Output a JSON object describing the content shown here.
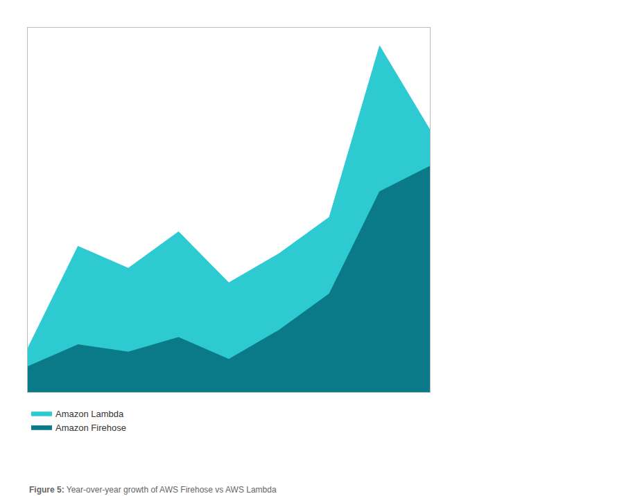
{
  "chart_data": {
    "type": "area",
    "x": [
      0,
      1,
      2,
      3,
      4,
      5,
      6,
      7,
      8
    ],
    "series": [
      {
        "name": "Amazon Lambda",
        "color": "#2ECAD2",
        "values": [
          0.12,
          0.4,
          0.34,
          0.44,
          0.3,
          0.38,
          0.48,
          0.95,
          0.72
        ]
      },
      {
        "name": "Amazon Firehose",
        "color": "#0B7A88",
        "values": [
          0.07,
          0.13,
          0.11,
          0.15,
          0.09,
          0.17,
          0.27,
          0.55,
          0.62
        ]
      }
    ],
    "xlim": [
      0,
      8
    ],
    "ylim": [
      0,
      1.0
    ],
    "yticks": [
      0,
      0.2,
      0.4,
      0.6,
      0.8,
      1.0
    ],
    "grid": true,
    "stacked": false,
    "tick_labels": false,
    "legend": "bottom",
    "annotations": [
      "Figure 5:",
      "Year-over-year growth of AWS Firehose vs AWS Lambda"
    ]
  }
}
